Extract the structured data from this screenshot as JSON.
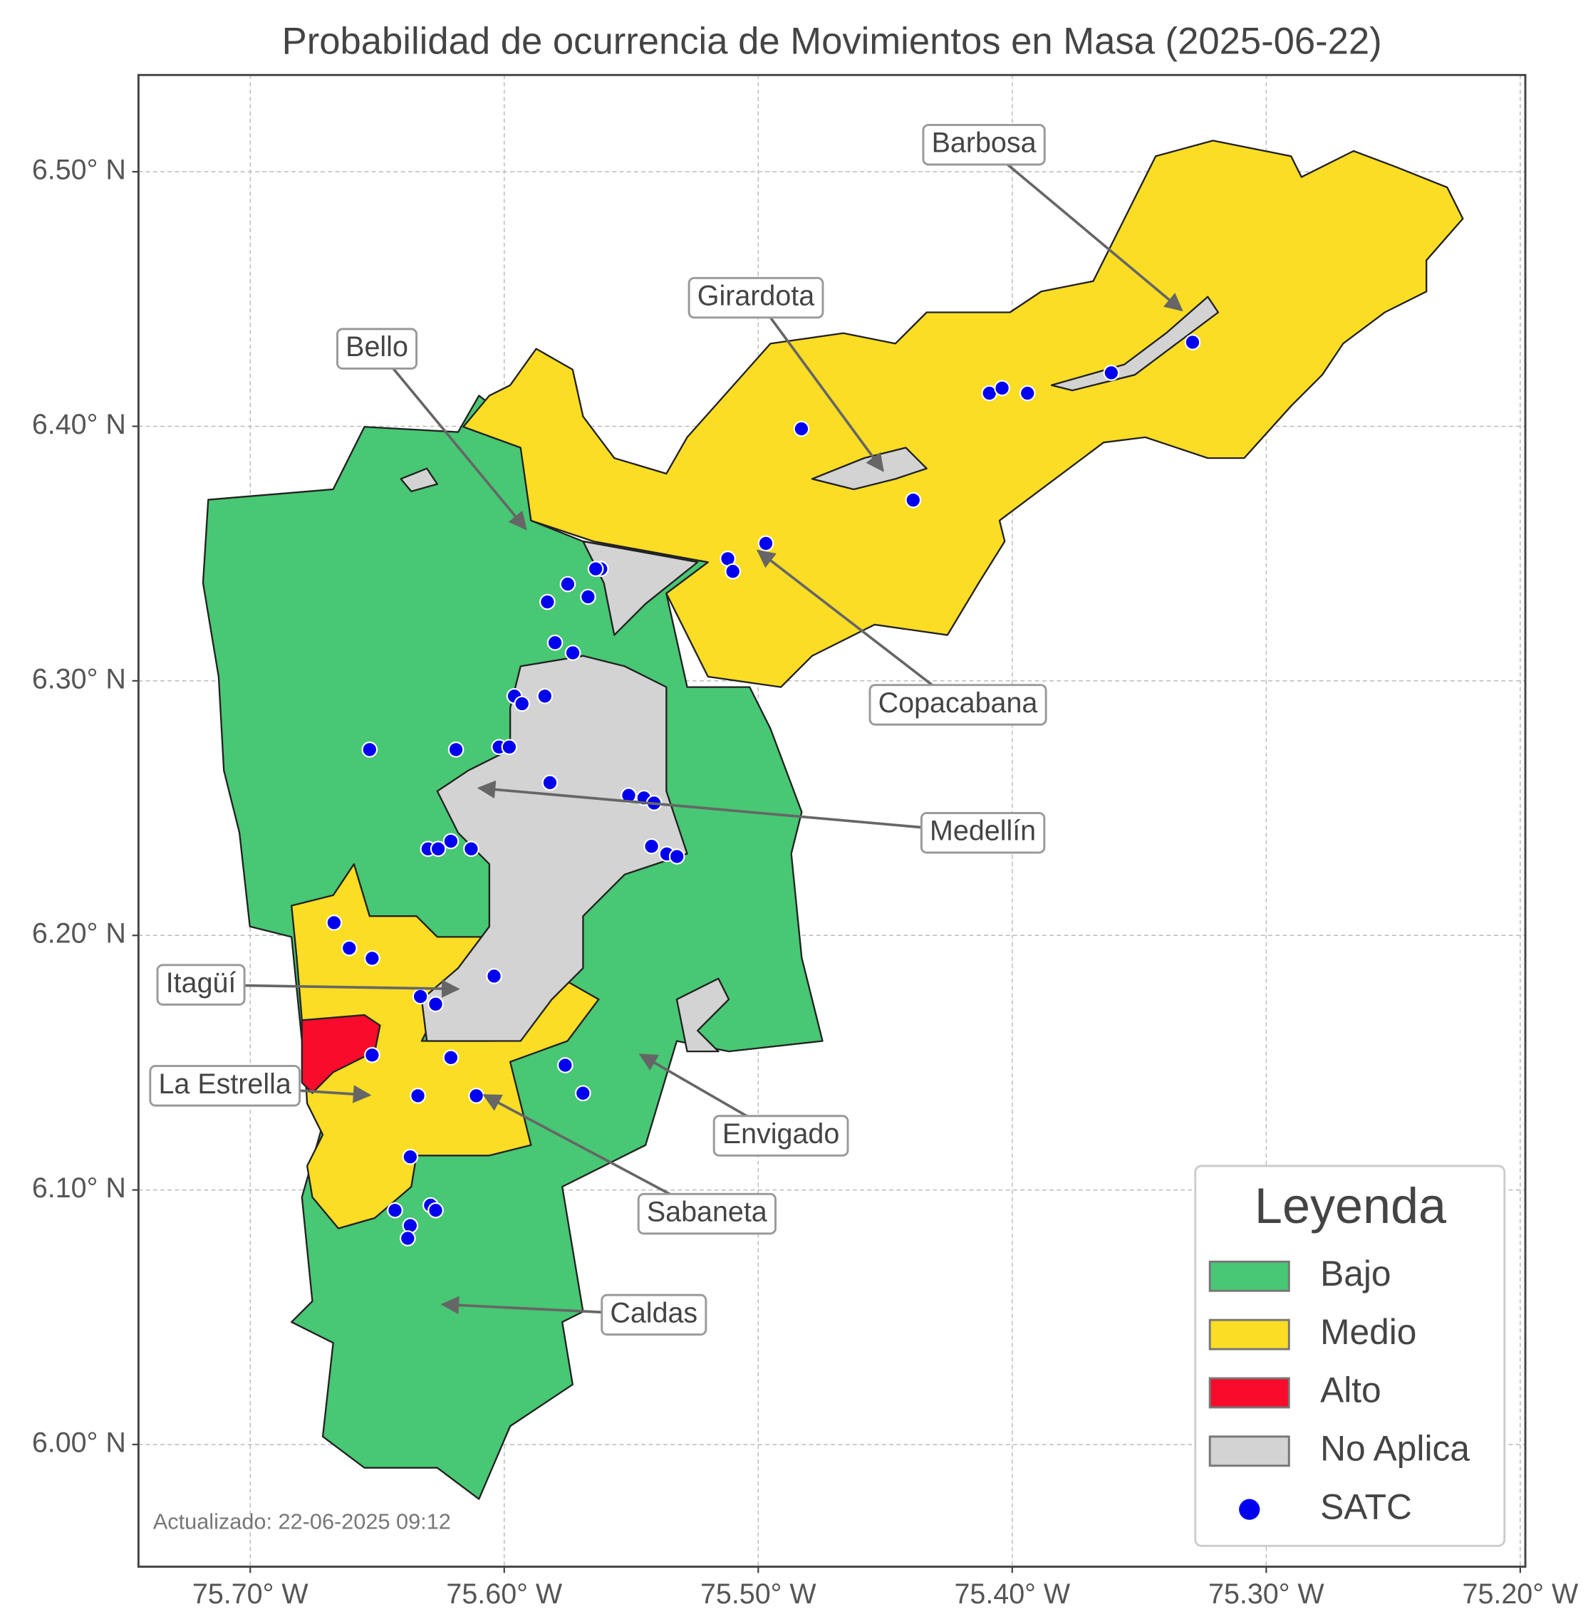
{
  "chart_data": {
    "type": "map",
    "title": "Probabilidad de ocurrencia de Movimientos en Masa (2025-06-22)",
    "xlim": [
      -75.744,
      -75.198
    ],
    "ylim": [
      5.952,
      6.538
    ],
    "xticks": [
      {
        "value": -75.7,
        "label": "75.70° W"
      },
      {
        "value": -75.6,
        "label": "75.60° W"
      },
      {
        "value": -75.5,
        "label": "75.50° W"
      },
      {
        "value": -75.4,
        "label": "75.40° W"
      },
      {
        "value": -75.3,
        "label": "75.30° W"
      },
      {
        "value": -75.2,
        "label": "75.20° W"
      }
    ],
    "yticks": [
      {
        "value": 6.0,
        "label": "6.00° N"
      },
      {
        "value": 6.1,
        "label": "6.10° N"
      },
      {
        "value": 6.2,
        "label": "6.20° N"
      },
      {
        "value": 6.3,
        "label": "6.30° N"
      },
      {
        "value": 6.4,
        "label": "6.40° N"
      },
      {
        "value": 6.5,
        "label": "6.50° N"
      }
    ],
    "grid": true,
    "legend": {
      "title": "Leyenda",
      "entries": [
        {
          "name": "Bajo",
          "color": "#48c774"
        },
        {
          "name": "Medio",
          "color": "#fbdd25"
        },
        {
          "name": "Alto",
          "color": "#f80b2b"
        },
        {
          "name": "No Aplica",
          "color": "#d3d3d3"
        }
      ]
    },
    "series": [
      {
        "name": "SATC",
        "color": "#0000ee",
        "x": [
          -75.329,
          -75.361,
          -75.409,
          -75.404,
          -75.394,
          -75.483,
          -75.439,
          -75.497,
          -75.512,
          -75.51,
          -75.562,
          -75.564,
          -75.575,
          -75.583,
          -75.567,
          -75.58,
          -75.573,
          -75.596,
          -75.593,
          -75.584,
          -75.653,
          -75.619,
          -75.602,
          -75.598,
          -75.582,
          -75.551,
          -75.545,
          -75.541,
          -75.542,
          -75.536,
          -75.532,
          -75.63,
          -75.626,
          -75.621,
          -75.613,
          -75.667,
          -75.661,
          -75.652,
          -75.604,
          -75.633,
          -75.627,
          -75.621,
          -75.652,
          -75.576,
          -75.634,
          -75.611,
          -75.569,
          -75.637,
          -75.643,
          -75.629,
          -75.627,
          -75.637,
          -75.638
        ],
        "values": [
          6.433,
          6.421,
          6.413,
          6.415,
          6.413,
          6.399,
          6.371,
          6.354,
          6.348,
          6.343,
          6.344,
          6.344,
          6.338,
          6.331,
          6.333,
          6.315,
          6.311,
          6.294,
          6.291,
          6.294,
          6.273,
          6.273,
          6.274,
          6.274,
          6.26,
          6.255,
          6.254,
          6.252,
          6.235,
          6.232,
          6.231,
          6.234,
          6.234,
          6.237,
          6.234,
          6.205,
          6.195,
          6.191,
          6.184,
          6.176,
          6.173,
          6.152,
          6.153,
          6.149,
          6.137,
          6.137,
          6.138,
          6.113,
          6.092,
          6.094,
          6.092,
          6.086,
          6.081
        ]
      }
    ],
    "annotations": [
      "Barbosa",
      "Girardota",
      "Bello",
      "Copacabana",
      "Medellín",
      "Itagüí",
      "La Estrella",
      "Envigado",
      "Sabaneta",
      "Caldas"
    ],
    "footnote": "Actualizado: 22-06-2025 09:12"
  }
}
